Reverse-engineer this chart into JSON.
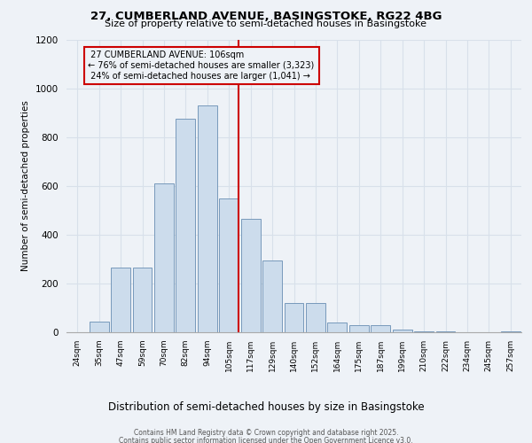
{
  "title1": "27, CUMBERLAND AVENUE, BASINGSTOKE, RG22 4BG",
  "title2": "Size of property relative to semi-detached houses in Basingstoke",
  "xlabel": "Distribution of semi-detached houses by size in Basingstoke",
  "ylabel": "Number of semi-detached properties",
  "categories": [
    "24sqm",
    "35sqm",
    "47sqm",
    "59sqm",
    "70sqm",
    "82sqm",
    "94sqm",
    "105sqm",
    "117sqm",
    "129sqm",
    "140sqm",
    "152sqm",
    "164sqm",
    "175sqm",
    "187sqm",
    "199sqm",
    "210sqm",
    "222sqm",
    "234sqm",
    "245sqm",
    "257sqm"
  ],
  "values": [
    0,
    45,
    265,
    265,
    610,
    875,
    930,
    550,
    465,
    295,
    120,
    120,
    40,
    30,
    30,
    10,
    5,
    3,
    0,
    0,
    5
  ],
  "bar_color": "#ccdcec",
  "bar_edge_color": "#7799bb",
  "vline_color": "#cc0000",
  "marker_label": "27 CUMBERLAND AVENUE: 106sqm",
  "pct_smaller": 76,
  "n_smaller": 3323,
  "pct_larger": 24,
  "n_larger": 1041,
  "ylim": [
    0,
    1200
  ],
  "yticks": [
    0,
    200,
    400,
    600,
    800,
    1000,
    1200
  ],
  "bg_color": "#eef2f7",
  "grid_color": "#d8e0ea",
  "footer1": "Contains HM Land Registry data © Crown copyright and database right 2025.",
  "footer2": "Contains public sector information licensed under the Open Government Licence v3.0."
}
